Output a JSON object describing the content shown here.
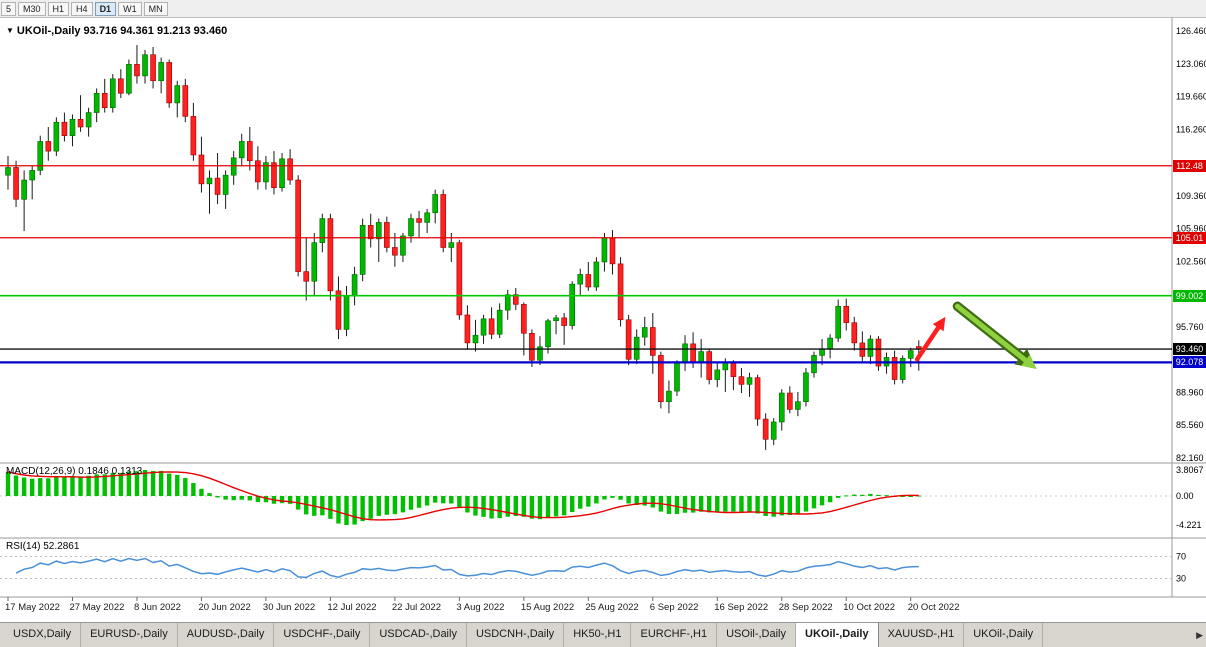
{
  "icons": {
    "chart_dropdown": "▼",
    "tab_scroll_right": "▶"
  },
  "toolbar": {
    "buttons": [
      {
        "label": "5",
        "active": false
      },
      {
        "label": "M30",
        "active": false
      },
      {
        "label": "H1",
        "active": false
      },
      {
        "label": "H4",
        "active": false
      },
      {
        "label": "D1",
        "active": true
      },
      {
        "label": "W1",
        "active": false
      },
      {
        "label": "MN",
        "active": false
      }
    ]
  },
  "chart": {
    "title": "UKOil-,Daily  93.716 94.361 91.213 93.460",
    "symbol": "UKOil-",
    "timeframe": "Daily",
    "open": "93.716",
    "high": "94.361",
    "low": "91.213",
    "close": "93.460"
  },
  "levels": {
    "r1": {
      "value": "112.48",
      "price": 112.48,
      "color": "#e00000"
    },
    "r2": {
      "value": "105.01",
      "price": 105.01,
      "color": "#e00000"
    },
    "s1": {
      "value": "99.002",
      "price": 99.002,
      "color": "#00b800"
    },
    "current": {
      "value": "93.460",
      "price": 93.46,
      "color": "#000000"
    },
    "s2": {
      "value": "92.078",
      "price": 92.078,
      "color": "#0000cc"
    }
  },
  "indicators": {
    "macd": {
      "label": "MACD(12,26,9) 0.1846 0.1313",
      "axis_labels": [
        "3.8067",
        "0.00",
        "-4.221"
      ],
      "histogram_color": "#00c000",
      "signal_color": "#e80000"
    },
    "rsi": {
      "label": "RSI(14) 52.2861",
      "levels": [
        70,
        30
      ],
      "axis_labels": [
        "70",
        "30"
      ],
      "line_color": "#4a90d9"
    }
  },
  "chart_data": {
    "type": "candlestick",
    "title": "UKOil-,Daily",
    "ylim": [
      82.16,
      126.46
    ],
    "up_color": "#00b800",
    "down_color": "#ff2020",
    "y_ticks": [
      {
        "price": 126.46,
        "label": "126.460"
      },
      {
        "price": 123.06,
        "label": "123.060"
      },
      {
        "price": 119.66,
        "label": "119.660"
      },
      {
        "price": 116.26,
        "label": "116.260"
      },
      {
        "price": 109.36,
        "label": "109.360"
      },
      {
        "price": 105.96,
        "label": "105.960"
      },
      {
        "price": 102.56,
        "label": "102.560"
      },
      {
        "price": 95.76,
        "label": "95.760"
      },
      {
        "price": 88.96,
        "label": "88.960"
      },
      {
        "price": 85.56,
        "label": "85.560"
      },
      {
        "price": 82.16,
        "label": "82.160"
      }
    ],
    "x_labels": [
      {
        "i": 0,
        "label": "17 May 2022"
      },
      {
        "i": 8,
        "label": "27 May 2022"
      },
      {
        "i": 16,
        "label": "8 Jun 2022"
      },
      {
        "i": 24,
        "label": "20 Jun 2022"
      },
      {
        "i": 32,
        "label": "30 Jun 2022"
      },
      {
        "i": 40,
        "label": "12 Jul 2022"
      },
      {
        "i": 48,
        "label": "22 Jul 2022"
      },
      {
        "i": 56,
        "label": "3 Aug 2022"
      },
      {
        "i": 64,
        "label": "15 Aug 2022"
      },
      {
        "i": 72,
        "label": "25 Aug 2022"
      },
      {
        "i": 80,
        "label": "6 Sep 2022"
      },
      {
        "i": 88,
        "label": "16 Sep 2022"
      },
      {
        "i": 96,
        "label": "28 Sep 2022"
      },
      {
        "i": 104,
        "label": "10 Oct 2022"
      },
      {
        "i": 112,
        "label": "20 Oct 2022"
      }
    ],
    "hlines": [
      {
        "price": 112.48,
        "color": "#e00000",
        "width": 1.2,
        "name": "resistance-line-112"
      },
      {
        "price": 105.01,
        "color": "#e00000",
        "width": 1.2,
        "name": "resistance-line-105"
      },
      {
        "price": 99.002,
        "color": "#00c800",
        "width": 1.7,
        "name": "support-line-99"
      },
      {
        "price": 93.46,
        "color": "#111111",
        "width": 1.3,
        "name": "current-price-line"
      },
      {
        "price": 92.078,
        "color": "#0000cc",
        "width": 2.2,
        "name": "support-line-92"
      }
    ],
    "annotations": [
      {
        "name": "bullish-arrow-annotation",
        "color": "#ff1f1f",
        "from": {
          "bar": 112.8,
          "price": 92.4
        },
        "to": {
          "bar": 116.3,
          "price": 96.8
        }
      },
      {
        "name": "bearish-arrow-annotation",
        "color": "#8fd13f",
        "outline_color": "#3f6e12",
        "from": {
          "bar": 117.8,
          "price": 97.9
        },
        "to": {
          "bar": 127.6,
          "price": 91.4
        }
      }
    ],
    "candles": [
      [
        111.5,
        113.5,
        110.0,
        112.3
      ],
      [
        112.3,
        113.0,
        108.2,
        109.0
      ],
      [
        109.0,
        112.0,
        105.7,
        111.0
      ],
      [
        111.0,
        112.5,
        109.0,
        112.0
      ],
      [
        112.0,
        115.6,
        111.5,
        115.0
      ],
      [
        115.0,
        116.5,
        113.0,
        114.0
      ],
      [
        114.0,
        117.5,
        113.5,
        117.0
      ],
      [
        117.0,
        118.0,
        115.0,
        115.6
      ],
      [
        115.6,
        117.8,
        114.5,
        117.3
      ],
      [
        117.3,
        119.8,
        116.0,
        116.5
      ],
      [
        116.5,
        118.5,
        115.5,
        118.0
      ],
      [
        118.0,
        120.5,
        117.0,
        120.0
      ],
      [
        120.0,
        121.5,
        118.0,
        118.5
      ],
      [
        118.5,
        122.0,
        118.0,
        121.5
      ],
      [
        121.5,
        122.5,
        119.5,
        120.0
      ],
      [
        120.0,
        123.5,
        119.8,
        123.0
      ],
      [
        123.0,
        125.0,
        121.0,
        121.8
      ],
      [
        121.8,
        124.5,
        121.0,
        124.0
      ],
      [
        124.0,
        124.8,
        120.5,
        121.3
      ],
      [
        121.3,
        123.7,
        120.0,
        123.2
      ],
      [
        123.2,
        123.5,
        118.5,
        119.0
      ],
      [
        119.0,
        121.3,
        117.5,
        120.8
      ],
      [
        120.8,
        121.5,
        117.0,
        117.6
      ],
      [
        117.6,
        119.0,
        113.0,
        113.6
      ],
      [
        113.6,
        115.5,
        109.7,
        110.6
      ],
      [
        110.6,
        112.0,
        107.5,
        111.2
      ],
      [
        111.2,
        113.8,
        108.5,
        109.5
      ],
      [
        109.5,
        112.0,
        108.0,
        111.5
      ],
      [
        111.5,
        114.0,
        110.5,
        113.3
      ],
      [
        113.3,
        115.8,
        112.5,
        115.0
      ],
      [
        115.0,
        116.5,
        112.0,
        113.0
      ],
      [
        113.0,
        114.5,
        110.0,
        110.8
      ],
      [
        110.8,
        113.5,
        110.0,
        112.8
      ],
      [
        112.8,
        114.0,
        109.5,
        110.2
      ],
      [
        110.2,
        113.8,
        109.8,
        113.2
      ],
      [
        113.2,
        114.2,
        110.5,
        111.0
      ],
      [
        111.0,
        111.5,
        101.0,
        101.5
      ],
      [
        101.5,
        105.0,
        98.5,
        100.5
      ],
      [
        100.5,
        105.5,
        99.0,
        104.5
      ],
      [
        104.5,
        107.5,
        103.5,
        107.0
      ],
      [
        107.0,
        107.5,
        98.5,
        99.5
      ],
      [
        99.5,
        101.0,
        94.5,
        95.5
      ],
      [
        95.5,
        100.0,
        94.8,
        99.0
      ],
      [
        99.0,
        102.0,
        98.0,
        101.2
      ],
      [
        101.2,
        107.0,
        100.5,
        106.3
      ],
      [
        106.3,
        107.5,
        104.0,
        104.9
      ],
      [
        104.9,
        107.0,
        102.5,
        106.6
      ],
      [
        106.6,
        107.2,
        103.5,
        104.0
      ],
      [
        104.0,
        105.5,
        102.0,
        103.2
      ],
      [
        103.2,
        105.5,
        102.5,
        105.2
      ],
      [
        105.2,
        107.5,
        104.5,
        107.0
      ],
      [
        107.0,
        107.8,
        105.0,
        106.6
      ],
      [
        106.6,
        108.0,
        105.5,
        107.6
      ],
      [
        107.6,
        110.0,
        106.5,
        109.5
      ],
      [
        109.5,
        110.0,
        103.5,
        104.0
      ],
      [
        104.0,
        105.5,
        102.5,
        104.5
      ],
      [
        104.5,
        104.8,
        96.5,
        97.0
      ],
      [
        97.0,
        98.0,
        93.4,
        94.1
      ],
      [
        94.1,
        96.5,
        93.2,
        94.9
      ],
      [
        94.9,
        97.0,
        94.0,
        96.6
      ],
      [
        96.6,
        97.8,
        94.5,
        95.0
      ],
      [
        95.0,
        98.2,
        94.6,
        97.5
      ],
      [
        97.5,
        99.6,
        96.5,
        99.1
      ],
      [
        99.1,
        99.8,
        97.5,
        98.1
      ],
      [
        98.1,
        98.3,
        92.8,
        95.1
      ],
      [
        95.1,
        95.5,
        91.6,
        92.3
      ],
      [
        92.3,
        94.8,
        91.8,
        93.7
      ],
      [
        93.7,
        96.6,
        93.0,
        96.4
      ],
      [
        96.4,
        97.0,
        95.0,
        96.7
      ],
      [
        96.7,
        97.2,
        93.9,
        95.9
      ],
      [
        95.9,
        100.5,
        95.5,
        100.2
      ],
      [
        100.2,
        101.8,
        99.0,
        101.2
      ],
      [
        101.2,
        102.5,
        99.5,
        99.9
      ],
      [
        99.9,
        103.0,
        99.5,
        102.5
      ],
      [
        102.5,
        105.5,
        101.5,
        105.0
      ],
      [
        105.0,
        105.8,
        101.2,
        102.3
      ],
      [
        102.3,
        103.0,
        95.8,
        96.5
      ],
      [
        96.5,
        97.0,
        91.8,
        92.4
      ],
      [
        92.4,
        95.5,
        91.9,
        94.7
      ],
      [
        94.7,
        96.8,
        93.8,
        95.7
      ],
      [
        95.7,
        97.2,
        90.9,
        92.8
      ],
      [
        92.8,
        93.2,
        87.3,
        88.0
      ],
      [
        88.0,
        90.2,
        86.8,
        89.1
      ],
      [
        89.1,
        92.3,
        88.6,
        92.0
      ],
      [
        92.0,
        94.9,
        91.2,
        94.0
      ],
      [
        94.0,
        95.2,
        91.5,
        92.1
      ],
      [
        92.1,
        94.5,
        90.5,
        93.2
      ],
      [
        93.2,
        93.5,
        89.8,
        90.3
      ],
      [
        90.3,
        92.0,
        89.5,
        91.3
      ],
      [
        91.3,
        92.5,
        89.0,
        92.0
      ],
      [
        92.0,
        92.3,
        89.2,
        90.6
      ],
      [
        90.6,
        91.5,
        88.9,
        89.8
      ],
      [
        89.8,
        91.0,
        88.5,
        90.5
      ],
      [
        90.5,
        90.8,
        85.5,
        86.2
      ],
      [
        86.2,
        86.8,
        83.0,
        84.1
      ],
      [
        84.1,
        86.3,
        83.5,
        85.9
      ],
      [
        85.9,
        89.3,
        85.0,
        88.9
      ],
      [
        88.9,
        89.6,
        86.8,
        87.2
      ],
      [
        87.2,
        89.0,
        86.5,
        88.0
      ],
      [
        88.0,
        91.5,
        87.5,
        91.0
      ],
      [
        91.0,
        93.2,
        90.5,
        92.8
      ],
      [
        92.8,
        94.5,
        91.8,
        93.5
      ],
      [
        93.5,
        95.0,
        92.5,
        94.6
      ],
      [
        94.6,
        98.6,
        94.2,
        97.9
      ],
      [
        97.9,
        98.7,
        95.4,
        96.2
      ],
      [
        96.2,
        96.8,
        93.3,
        94.1
      ],
      [
        94.1,
        95.3,
        92.2,
        92.7
      ],
      [
        92.7,
        94.9,
        91.9,
        94.5
      ],
      [
        94.5,
        94.8,
        91.2,
        91.7
      ],
      [
        91.7,
        93.1,
        90.9,
        92.6
      ],
      [
        92.6,
        93.3,
        89.8,
        90.3
      ],
      [
        90.3,
        92.8,
        89.9,
        92.5
      ],
      [
        92.5,
        93.6,
        91.6,
        93.3
      ],
      [
        93.716,
        94.361,
        91.213,
        93.46
      ]
    ]
  },
  "tabs": [
    {
      "label": "USDX,Daily",
      "active": false
    },
    {
      "label": "EURUSD-,Daily",
      "active": false
    },
    {
      "label": "AUDUSD-,Daily",
      "active": false
    },
    {
      "label": "USDCHF-,Daily",
      "active": false
    },
    {
      "label": "USDCAD-,Daily",
      "active": false
    },
    {
      "label": "USDCNH-,Daily",
      "active": false
    },
    {
      "label": "HK50-,H1",
      "active": false
    },
    {
      "label": "EURCHF-,H1",
      "active": false
    },
    {
      "label": "USOil-,Daily",
      "active": false
    },
    {
      "label": "UKOil-,Daily",
      "active": true
    },
    {
      "label": "XAUUSD-,H1",
      "active": false
    },
    {
      "label": "UKOil-,Daily",
      "active": false
    }
  ]
}
